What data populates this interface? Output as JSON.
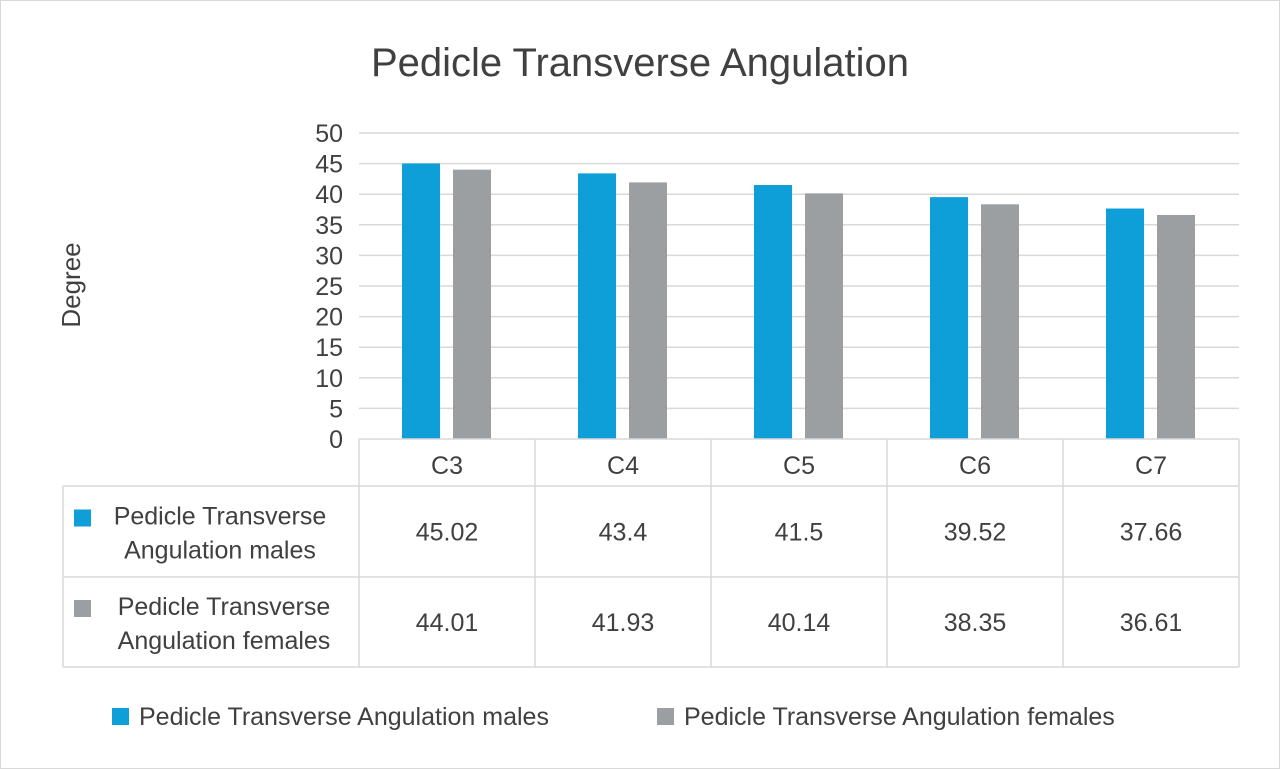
{
  "chart_data": {
    "type": "bar",
    "title": "Pedicle Transverse Angulation",
    "xlabel": "",
    "ylabel": "Degree",
    "ylim": [
      0,
      50
    ],
    "yticks": [
      0,
      5,
      10,
      15,
      20,
      25,
      30,
      35,
      40,
      45,
      50
    ],
    "categories": [
      "C3",
      "C4",
      "C5",
      "C6",
      "C7"
    ],
    "series": [
      {
        "name": "Pedicle Transverse Angulation males",
        "table_label": [
          "Pedicle Transverse",
          "Angulation males"
        ],
        "color": "#0e9ed8",
        "values": [
          45.02,
          43.4,
          41.5,
          39.52,
          37.66
        ]
      },
      {
        "name": "Pedicle Transverse Angulation females",
        "table_label": [
          "Pedicle Transverse",
          "Angulation females"
        ],
        "color": "#9b9fa2",
        "values": [
          44.01,
          41.93,
          40.14,
          38.35,
          36.61
        ]
      }
    ],
    "grid": true,
    "legend_position": "bottom",
    "data_table": true
  }
}
